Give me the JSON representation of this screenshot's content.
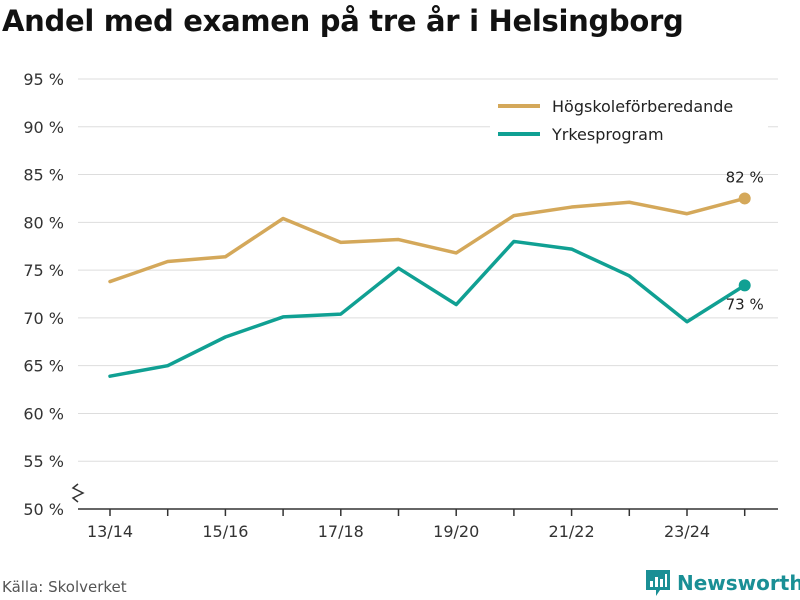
{
  "title": "Andel med examen på tre år i Helsingborg",
  "source": "Källa: Skolverket",
  "brand": {
    "name": "Newsworthy",
    "icon": "bar-chart-logo-icon",
    "color": "#1a8f95"
  },
  "chart_data": {
    "type": "line",
    "title": "Andel med examen på tre år i Helsingborg",
    "x": [
      "13/14",
      "14/15",
      "15/16",
      "16/17",
      "17/18",
      "18/19",
      "19/20",
      "20/21",
      "21/22",
      "22/23",
      "23/24",
      "24/25"
    ],
    "x_tick_labels": [
      "13/14",
      "15/16",
      "17/18",
      "19/20",
      "21/22",
      "23/24"
    ],
    "y_ticks": [
      "50 %",
      "55 %",
      "60 %",
      "65 %",
      "70 %",
      "75 %",
      "80 %",
      "85 %",
      "90 %",
      "95 %"
    ],
    "ylim": [
      50,
      95
    ],
    "y_axis_broken": true,
    "grid": true,
    "legend_position": "top-right",
    "series": [
      {
        "name": "Högskoleförberedande",
        "color": "#d4a85a",
        "values": [
          73.8,
          75.9,
          76.4,
          80.4,
          77.9,
          78.2,
          76.8,
          80.7,
          81.6,
          82.1,
          80.9,
          82.5
        ],
        "end_label": "82 %"
      },
      {
        "name": "Yrkesprogram",
        "color": "#10a093",
        "values": [
          63.9,
          65.0,
          68.0,
          70.1,
          70.4,
          75.2,
          71.4,
          78.0,
          77.2,
          74.4,
          69.6,
          73.4
        ],
        "end_label": "73 %"
      }
    ]
  }
}
